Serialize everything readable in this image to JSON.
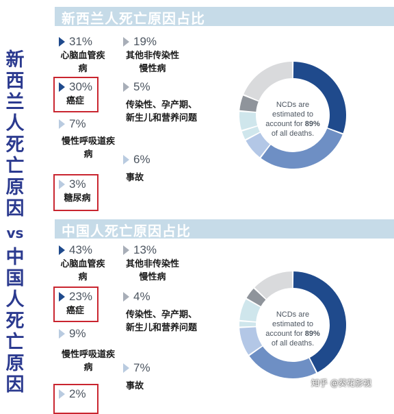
{
  "side_title": {
    "line1": "新西兰人死亡原因",
    "vs": "vs",
    "line2": "中国人死亡原因"
  },
  "watermark": "知乎 @葵花影视",
  "colors": {
    "dark_blue": "#1f4a8c",
    "mid_blue": "#6e8fc4",
    "light_blue": "#b3c7e6",
    "teal_light": "#cfe6ec",
    "grey_dark": "#8f949b",
    "grey_light": "#d9dadc",
    "highlight_red": "#c9252f"
  },
  "chart_data": [
    {
      "type": "pie",
      "title": "新西兰人死亡原因占比",
      "center_text": {
        "line1": "NCDs are",
        "line2": "estimated to",
        "line3_prefix": "account for",
        "line3_bold": "89%",
        "line4": "of all deaths."
      },
      "items": [
        {
          "pct": "31%",
          "label": "心脑血管疾病",
          "value": 31,
          "highlight": false
        },
        {
          "pct": "30%",
          "label": "癌症",
          "value": 30,
          "highlight": true
        },
        {
          "pct": "7%",
          "label": "慢性呼吸道疾病",
          "value": 7,
          "highlight": false
        },
        {
          "pct": "3%",
          "label": "糖尿病",
          "value": 3,
          "highlight": true
        },
        {
          "pct": "19%",
          "label": "其他非传染性慢性病",
          "value": 19,
          "highlight": false
        },
        {
          "pct": "5%",
          "label": "传染性、孕产期、新生儿和营养问题",
          "value": 5,
          "highlight": false
        },
        {
          "pct": "6%",
          "label": "事故",
          "value": 6,
          "highlight": false
        }
      ]
    },
    {
      "type": "pie",
      "title": "中国人死亡原因占比",
      "center_text": {
        "line1": "NCDs are",
        "line2": "estimated to",
        "line3_prefix": "account for",
        "line3_bold": "89%",
        "line4": "of all deaths."
      },
      "items": [
        {
          "pct": "43%",
          "label": "心脑血管疾病",
          "value": 43,
          "highlight": false
        },
        {
          "pct": "23%",
          "label": "癌症",
          "value": 23,
          "highlight": true
        },
        {
          "pct": "9%",
          "label": "慢性呼吸道疾病",
          "value": 9,
          "highlight": false
        },
        {
          "pct": "2%",
          "label": "",
          "value": 2,
          "highlight": true
        },
        {
          "pct": "13%",
          "label": "其他非传染性慢性病",
          "value": 13,
          "highlight": false
        },
        {
          "pct": "4%",
          "label": "传染性、孕产期、新生儿和营养问题",
          "value": 4,
          "highlight": false
        },
        {
          "pct": "7%",
          "label": "事故",
          "value": 7,
          "highlight": false
        }
      ]
    }
  ]
}
